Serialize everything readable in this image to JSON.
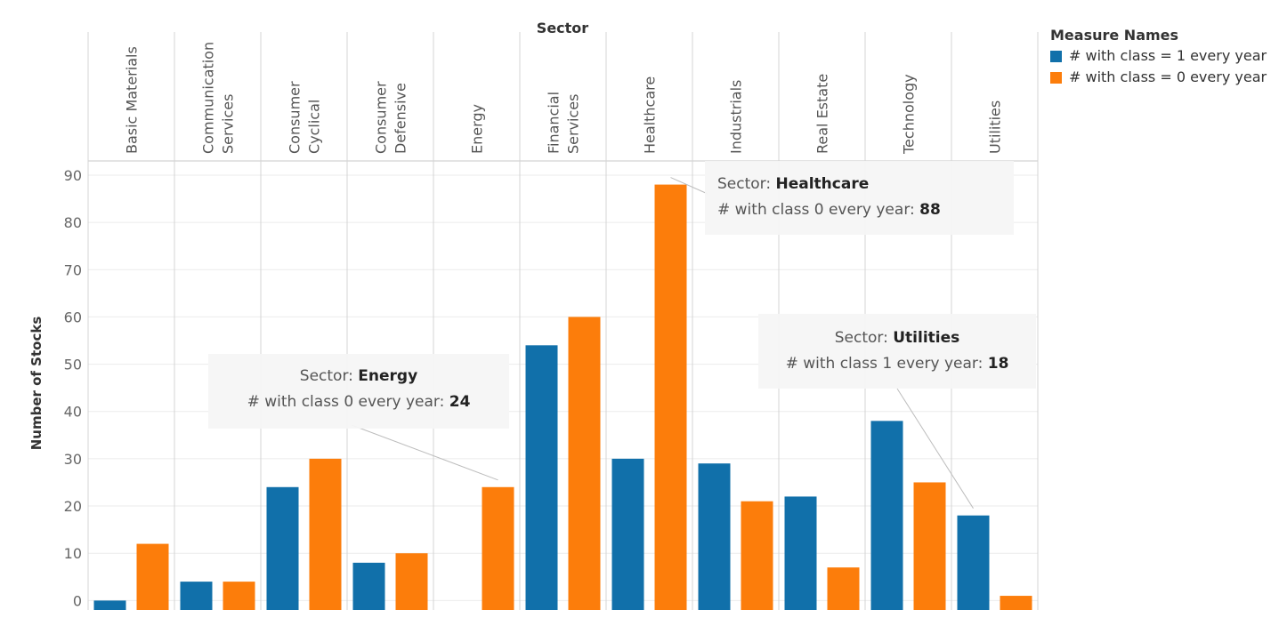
{
  "chart_data": {
    "type": "bar",
    "title": "",
    "column_header": "Sector",
    "ylabel": "Number of Stocks",
    "ylim": [
      -2,
      93
    ],
    "yticks": [
      0,
      10,
      20,
      30,
      40,
      50,
      60,
      70,
      80,
      90
    ],
    "categories": [
      "Basic Materials",
      "Communication Services",
      "Consumer Cyclical",
      "Consumer Defensive",
      "Energy",
      "Financial Services",
      "Healthcare",
      "Industrials",
      "Real Estate",
      "Technology",
      "Utilities"
    ],
    "category_lines": [
      [
        "Basic Materials"
      ],
      [
        "Communication",
        "Services"
      ],
      [
        "Consumer",
        "Cyclical"
      ],
      [
        "Consumer",
        "Defensive"
      ],
      [
        "Energy"
      ],
      [
        "Financial",
        "Services"
      ],
      [
        "Healthcare"
      ],
      [
        "Industrials"
      ],
      [
        "Real Estate"
      ],
      [
        "Technology"
      ],
      [
        "Utilities"
      ]
    ],
    "series": [
      {
        "name": "# with class = 1 every year",
        "color": "#1170aa",
        "values": [
          0,
          4,
          24,
          8,
          null,
          54,
          30,
          29,
          22,
          38,
          18
        ]
      },
      {
        "name": "# with class = 0 every year",
        "color": "#fc7d0b",
        "values": [
          12,
          4,
          30,
          10,
          24,
          60,
          88,
          21,
          7,
          25,
          1
        ]
      }
    ],
    "grid": true,
    "legend_position": "top-right",
    "legend_title": "Measure Names",
    "annotations": [
      {
        "id": "energy",
        "sector_label": "Sector:",
        "sector": "Energy",
        "measure_label": "# with class 0 every year:",
        "value": "24",
        "target_category": 4,
        "target_series": 1
      },
      {
        "id": "healthcare",
        "sector_label": "Sector:",
        "sector": "Healthcare",
        "measure_label": "# with class 0 every year:",
        "value": "88",
        "target_category": 6,
        "target_series": 1
      },
      {
        "id": "utilities",
        "sector_label": "Sector:",
        "sector": "Utilities",
        "measure_label": "# with class 1 every year:",
        "value": "18",
        "target_category": 10,
        "target_series": 0
      }
    ]
  }
}
